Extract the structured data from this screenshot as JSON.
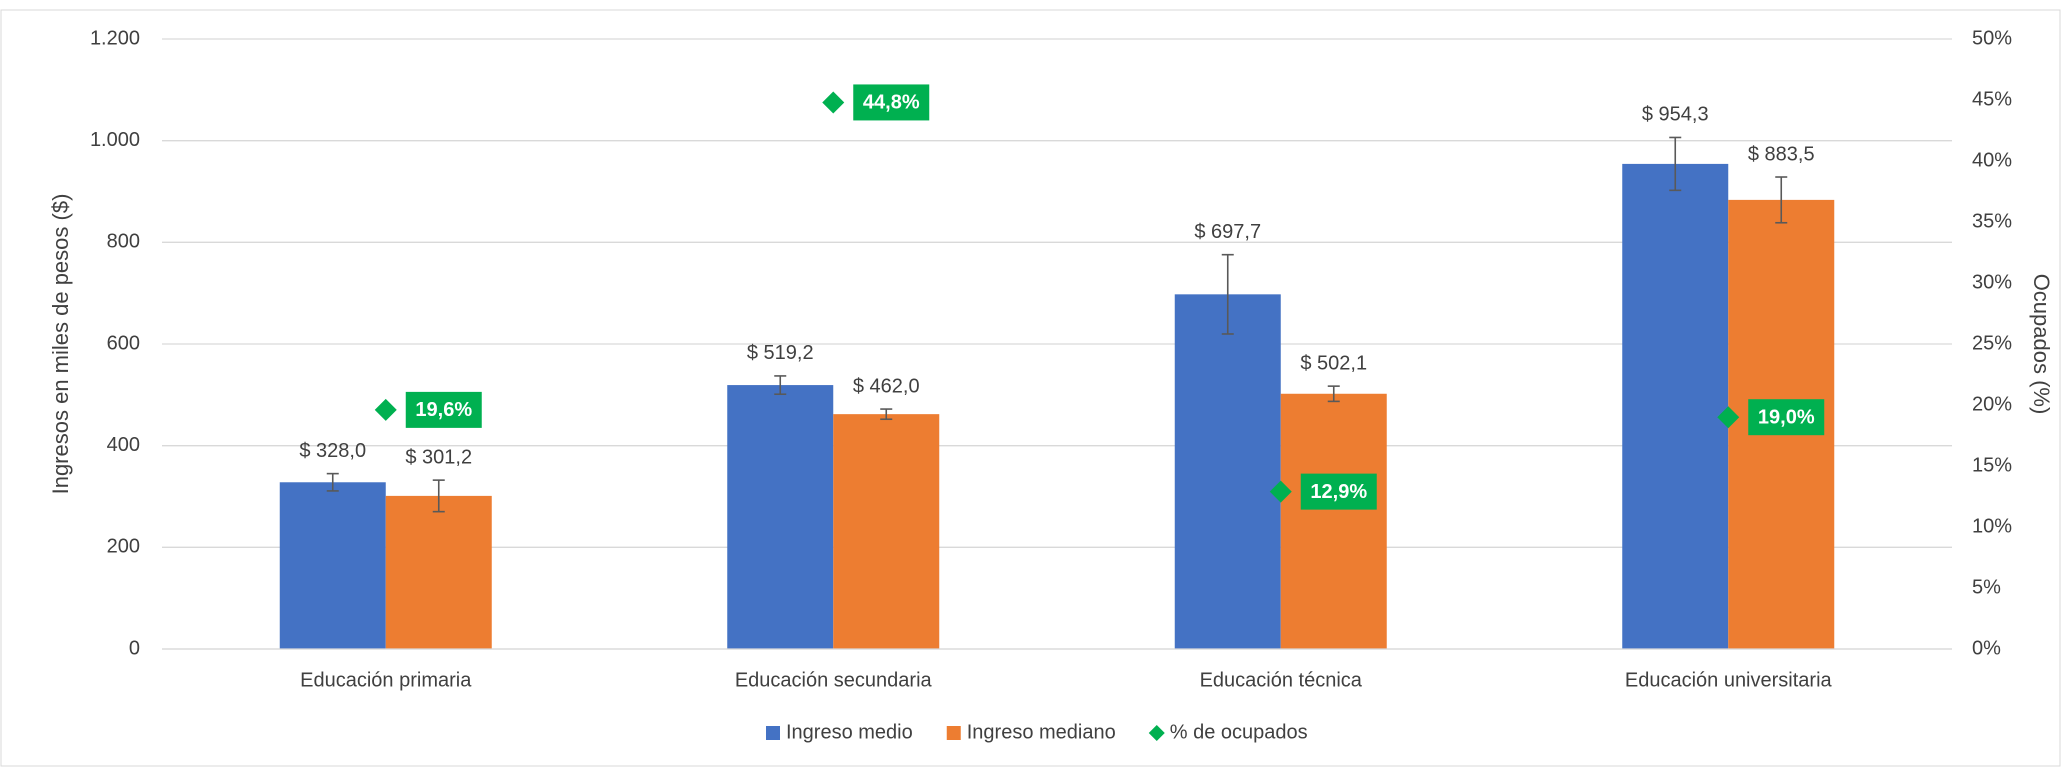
{
  "chart_data": {
    "type": "bar",
    "categories": [
      "Educación primaria",
      "Educación secundaria",
      "Educación técnica",
      "Educación universitaria"
    ],
    "series": [
      {
        "name": "Ingreso medio",
        "color": "#4472c4",
        "values": [
          328.0,
          519.2,
          697.7,
          954.3
        ],
        "value_labels": [
          "$ 328,0",
          "$ 519,2",
          "$ 697,7",
          "$ 954,3"
        ],
        "errors": [
          17,
          18,
          78,
          52
        ]
      },
      {
        "name": "Ingreso mediano",
        "color": "#ed7d31",
        "values": [
          301.2,
          462.0,
          502.1,
          883.5
        ],
        "value_labels": [
          "$ 301,2",
          "$ 462,0",
          "$ 502,1",
          "$ 883,5"
        ],
        "errors": [
          31,
          10,
          15,
          45
        ]
      },
      {
        "name": "% de ocupados",
        "color": "#00b050",
        "type": "scatter",
        "axis": "y2",
        "values": [
          19.6,
          44.8,
          12.9,
          19.0
        ],
        "value_labels": [
          "19,6%",
          "44,8%",
          "12,9%",
          "19,0%"
        ]
      }
    ],
    "ylabel": "Ingresos en miles de pesos ($)",
    "y2label": "Ocupados (%)",
    "ylim": [
      0,
      1200
    ],
    "yticks": [
      0,
      200,
      400,
      600,
      800,
      {
        "value": 1000,
        "label": "1.000"
      },
      {
        "value": 1200,
        "label": "1.200"
      }
    ],
    "y2lim": [
      0,
      50
    ],
    "y2ticks": [
      {
        "value": 0,
        "label": "0%"
      },
      {
        "value": 5,
        "label": "5%"
      },
      {
        "value": 10,
        "label": "10%"
      },
      {
        "value": 15,
        "label": "15%"
      },
      {
        "value": 20,
        "label": "20%"
      },
      {
        "value": 25,
        "label": "25%"
      },
      {
        "value": 30,
        "label": "30%"
      },
      {
        "value": 35,
        "label": "35%"
      },
      {
        "value": 40,
        "label": "40%"
      },
      {
        "value": 45,
        "label": "45%"
      },
      {
        "value": 50,
        "label": "50%"
      }
    ],
    "grid": true,
    "legend": "bottom"
  }
}
